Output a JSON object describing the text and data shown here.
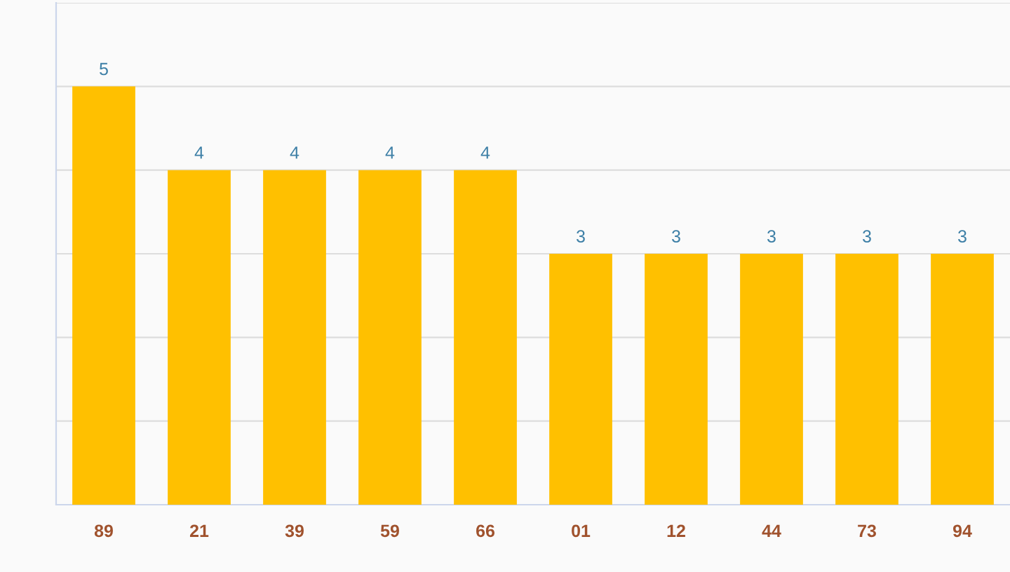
{
  "chart_data": {
    "type": "bar",
    "categories": [
      "89",
      "21",
      "39",
      "59",
      "66",
      "01",
      "12",
      "44",
      "73",
      "94"
    ],
    "values": [
      5,
      4,
      4,
      4,
      4,
      3,
      3,
      3,
      3,
      3
    ],
    "color": "#ffc000",
    "data_labels": true,
    "grid": "y",
    "tick_labels": "x",
    "ylim": [
      0,
      6
    ],
    "yticks": [
      {
        "value": 0,
        "label": null
      },
      {
        "value": 1,
        "label": null
      },
      {
        "value": 2,
        "label": null
      },
      {
        "value": 3,
        "label": null
      },
      {
        "value": 4,
        "label": null
      },
      {
        "value": 5,
        "label": null
      },
      {
        "value": 6,
        "label": null
      }
    ]
  }
}
